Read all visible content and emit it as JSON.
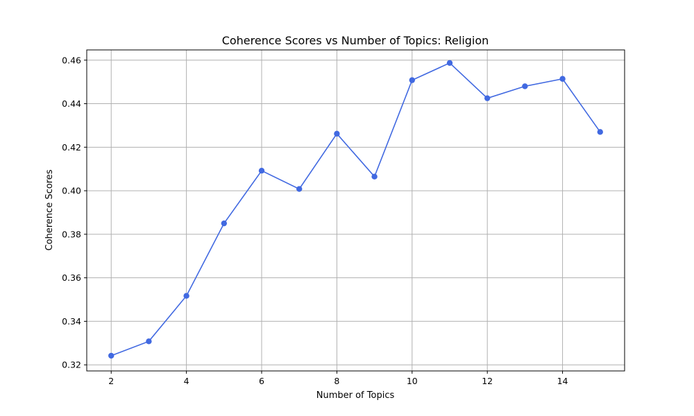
{
  "chart_data": {
    "type": "line",
    "title": "Coherence Scores vs Number of Topics: Religion",
    "xlabel": "Number of Topics",
    "ylabel": "Coherence Scores",
    "xlim": [
      1.35,
      15.65
    ],
    "ylim": [
      0.3172,
      0.4647
    ],
    "xticks": [
      2,
      4,
      6,
      8,
      10,
      12,
      14
    ],
    "xtick_labels": [
      "2",
      "4",
      "6",
      "8",
      "10",
      "12",
      "14"
    ],
    "yticks": [
      0.32,
      0.34,
      0.36,
      0.38,
      0.4,
      0.42,
      0.44,
      0.46
    ],
    "ytick_labels": [
      "0.32",
      "0.34",
      "0.36",
      "0.38",
      "0.40",
      "0.42",
      "0.44",
      "0.46"
    ],
    "grid": true,
    "series": [
      {
        "x": [
          2,
          3,
          4,
          5,
          6,
          7,
          8,
          9,
          10,
          11,
          12,
          13,
          14,
          15
        ],
        "y": [
          0.3242,
          0.3308,
          0.3517,
          0.385,
          0.4092,
          0.4008,
          0.4262,
          0.4065,
          0.4508,
          0.4587,
          0.4425,
          0.448,
          0.4514,
          0.427
        ],
        "color": "#4169e1",
        "marker": "circle"
      }
    ]
  }
}
